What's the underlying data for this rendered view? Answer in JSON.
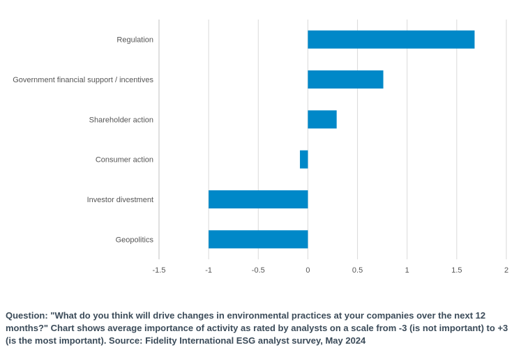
{
  "chart_data": {
    "type": "bar",
    "orientation": "horizontal",
    "categories": [
      "Regulation",
      "Government financial support / incentives",
      "Shareholder action",
      "Consumer action",
      "Investor divestment",
      "Geopolitics"
    ],
    "values": [
      1.68,
      0.76,
      0.29,
      -0.08,
      -1.0,
      -1.0
    ],
    "xlim": [
      -1.5,
      2
    ],
    "xticks": [
      "-1.5",
      "-1",
      "-0.5",
      "0",
      "0.5",
      "1",
      "1.5",
      "2"
    ],
    "grid": true,
    "bar_color": "#0088c8",
    "grid_color": "#d9d9d9",
    "axis_color": "#bfbfbf"
  },
  "caption": "Question: \"What do you think will drive changes in environmental practices at your companies over the next 12 months?\" Chart shows average importance of activity as rated by analysts on a scale from -3 (is not important) to +3 (is the most important). Source: Fidelity International ESG analyst survey, May 2024"
}
